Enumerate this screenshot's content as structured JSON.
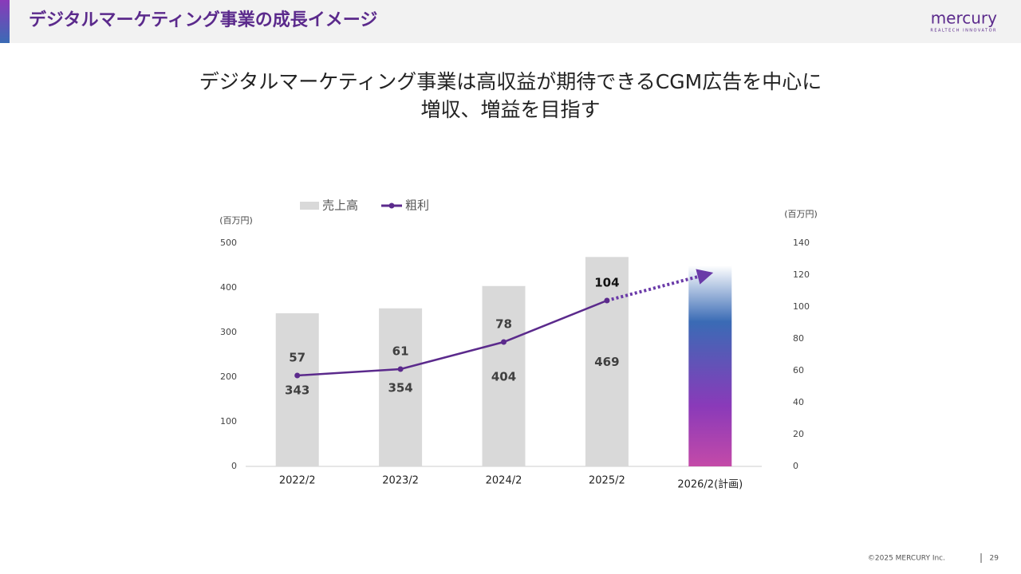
{
  "header": {
    "title": "デジタルマーケティング事業の成長イメージ",
    "logo": "mercury",
    "tagline": "REALTECH INNOVATOR"
  },
  "headline": [
    "デジタルマーケティング事業は高収益が期待できるCGM広告を中心に",
    "増収、増益を目指す"
  ],
  "chart_data": {
    "type": "bar_line",
    "categories": [
      "2022/2",
      "2023/2",
      "2024/2",
      "2025/2",
      "2026/2(計画)"
    ],
    "y_unit": "(百万円)",
    "y2_unit": "(百万円)",
    "series": [
      {
        "name": "売上高",
        "color": "#d9d9d9",
        "values": [
          343,
          354,
          404,
          469,
          450
        ],
        "value_labels": [
          "343",
          "354",
          "404",
          "469",
          null
        ]
      },
      {
        "name": "粗利",
        "color": "#5b2a8c",
        "axis": "y2",
        "values": [
          57,
          61,
          78,
          104,
          121
        ],
        "value_labels": [
          "57",
          "61",
          "78",
          "104",
          null
        ]
      }
    ],
    "ylim": [
      0,
      500
    ],
    "yticks": [
      0,
      100,
      200,
      300,
      400,
      500
    ],
    "y2lim": [
      0,
      140
    ],
    "y2ticks": [
      0,
      20,
      40,
      60,
      80,
      100,
      120,
      140
    ]
  },
  "footer": {
    "copyright": "©2025 MERCURY Inc.",
    "page": "29"
  }
}
